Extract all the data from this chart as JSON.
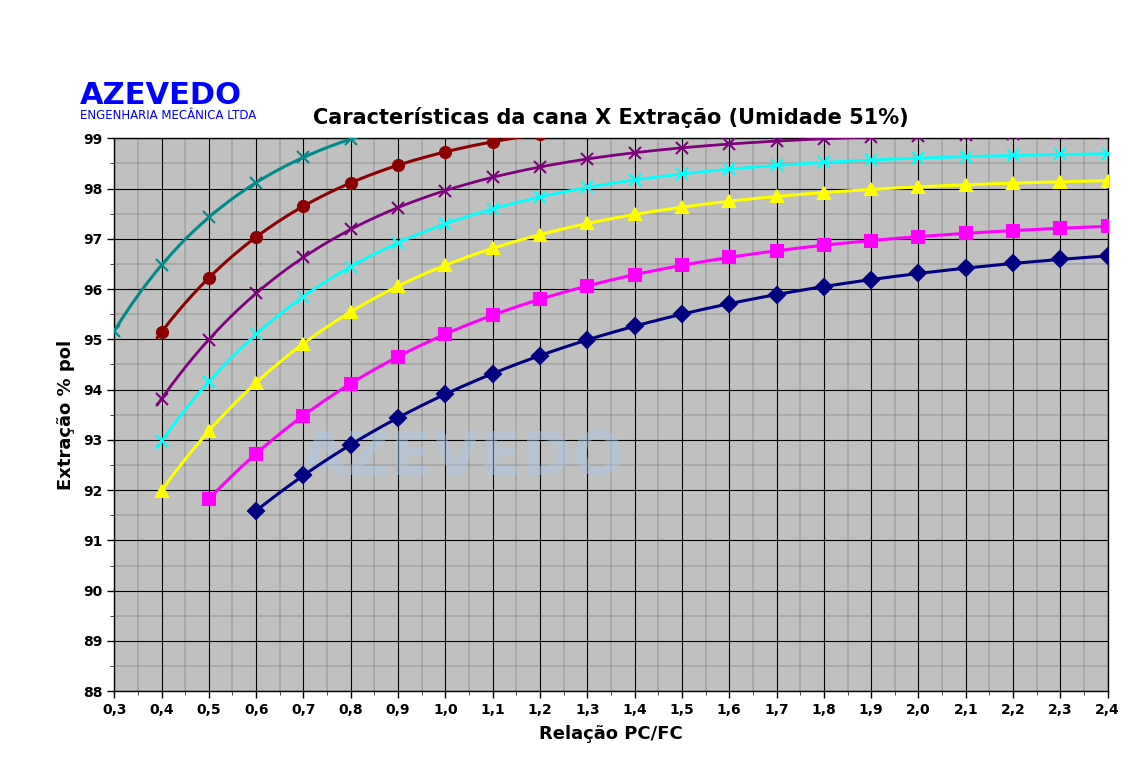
{
  "title": "Características da cana X Extração (Umidade 51%)",
  "xlabel": "Relação PC/FC",
  "ylabel": "Extração % pol",
  "logo_text": "AZEVEDO",
  "logo_sub": "ENGENHARIA MECÂNICA LTDA",
  "xlim": [
    0.3,
    2.4
  ],
  "ylim": [
    88,
    99
  ],
  "xticks": [
    0.3,
    0.4,
    0.5,
    0.6,
    0.7,
    0.8,
    0.9,
    1.0,
    1.1,
    1.2,
    1.3,
    1.4,
    1.5,
    1.6,
    1.7,
    1.8,
    1.9,
    2.0,
    2.1,
    2.2,
    2.3,
    2.4
  ],
  "yticks": [
    88,
    89,
    90,
    91,
    92,
    93,
    94,
    95,
    96,
    97,
    98,
    99
  ],
  "background_color": "#c0c0c0",
  "series_params": [
    {
      "color": "#008B8B",
      "marker": "x",
      "ms": 9,
      "lw": 2.2,
      "a": 99.95,
      "b": 12.5,
      "c": 3.2,
      "sx": 0.3
    },
    {
      "color": "#8B0000",
      "marker": "o",
      "ms": 8,
      "lw": 2.2,
      "a": 99.55,
      "b": 13.5,
      "c": 2.8,
      "sx": 0.4
    },
    {
      "color": "#800080",
      "marker": "x",
      "ms": 9,
      "lw": 2.0,
      "a": 99.15,
      "b": 14.5,
      "c": 2.5,
      "sx": 0.4
    },
    {
      "color": "#00FFFF",
      "marker": "x",
      "ms": 9,
      "lw": 2.0,
      "a": 98.75,
      "b": 14.5,
      "c": 2.3,
      "sx": 0.4
    },
    {
      "color": "#FFFF00",
      "marker": "^",
      "ms": 9,
      "lw": 2.2,
      "a": 98.25,
      "b": 14.5,
      "c": 2.1,
      "sx": 0.4
    },
    {
      "color": "#FF00FF",
      "marker": "s",
      "ms": 8,
      "lw": 2.2,
      "a": 97.45,
      "b": 13.5,
      "c": 1.75,
      "sx": 0.5
    },
    {
      "color": "#000080",
      "marker": "D",
      "ms": 8,
      "lw": 2.2,
      "a": 97.15,
      "b": 12.5,
      "c": 1.35,
      "sx": 0.6
    }
  ]
}
